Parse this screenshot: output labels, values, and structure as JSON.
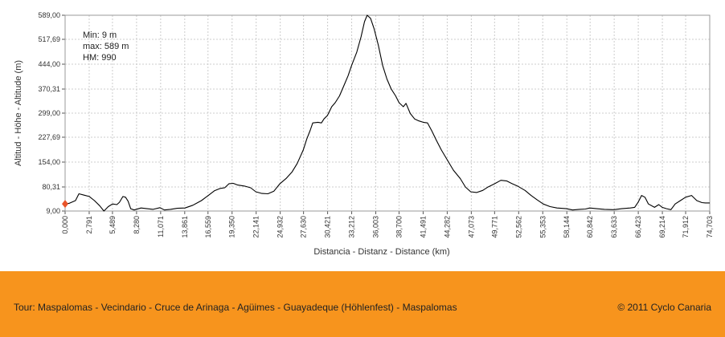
{
  "chart_data": {
    "type": "line",
    "title": "",
    "xlabel": "Distancia - Distanz - Distance (km)",
    "ylabel": "Altitud - Höhe - Altitude (m)",
    "xlim": [
      0,
      74.703
    ],
    "ylim": [
      9,
      589
    ],
    "x_ticks": [
      "0,000",
      "2,791",
      "5,489",
      "8,280",
      "11,071",
      "13,861",
      "16,559",
      "19,350",
      "22,141",
      "24,932",
      "27,630",
      "30,421",
      "33,212",
      "36,003",
      "38,700",
      "41,491",
      "44,282",
      "47,073",
      "49,771",
      "52,562",
      "55,353",
      "58,144",
      "60,842",
      "63,633",
      "66,423",
      "69,214",
      "71,912",
      "74,703"
    ],
    "y_ticks": [
      "9,00",
      "80,31",
      "154,00",
      "227,69",
      "299,00",
      "370,31",
      "444,00",
      "517,69",
      "589,00"
    ],
    "grid": true,
    "stats": {
      "min": "Min: 9 m",
      "max": "max: 589 m",
      "hm": "HM: 990"
    },
    "series": [
      {
        "values": [
          [
            0,
            30
          ],
          [
            0.5,
            32
          ],
          [
            1.2,
            40
          ],
          [
            1.6,
            60
          ],
          [
            2.2,
            56
          ],
          [
            2.8,
            52
          ],
          [
            3.4,
            40
          ],
          [
            4.0,
            25
          ],
          [
            4.5,
            9
          ],
          [
            5.0,
            22
          ],
          [
            5.5,
            30
          ],
          [
            6.0,
            28
          ],
          [
            6.3,
            35
          ],
          [
            6.7,
            52
          ],
          [
            7.0,
            50
          ],
          [
            7.3,
            38
          ],
          [
            7.6,
            16
          ],
          [
            8.0,
            12
          ],
          [
            8.8,
            18
          ],
          [
            9.5,
            16
          ],
          [
            10.2,
            14
          ],
          [
            11.0,
            19
          ],
          [
            11.5,
            12
          ],
          [
            12.2,
            14
          ],
          [
            13.0,
            17
          ],
          [
            13.9,
            18
          ],
          [
            14.8,
            26
          ],
          [
            15.8,
            40
          ],
          [
            16.6,
            55
          ],
          [
            17.3,
            69
          ],
          [
            18.0,
            76
          ],
          [
            18.5,
            78
          ],
          [
            19.0,
            90
          ],
          [
            19.5,
            91
          ],
          [
            20.0,
            86
          ],
          [
            20.8,
            83
          ],
          [
            21.5,
            78
          ],
          [
            22.1,
            66
          ],
          [
            22.8,
            61
          ],
          [
            23.5,
            60
          ],
          [
            24.2,
            68
          ],
          [
            24.9,
            90
          ],
          [
            25.6,
            105
          ],
          [
            26.3,
            125
          ],
          [
            26.9,
            150
          ],
          [
            27.6,
            190
          ],
          [
            28.0,
            222
          ],
          [
            28.4,
            248
          ],
          [
            28.7,
            270
          ],
          [
            29.3,
            272
          ],
          [
            29.7,
            270
          ],
          [
            30.0,
            282
          ],
          [
            30.4,
            292
          ],
          [
            30.9,
            318
          ],
          [
            31.3,
            330
          ],
          [
            31.8,
            350
          ],
          [
            32.3,
            380
          ],
          [
            32.8,
            410
          ],
          [
            33.2,
            440
          ],
          [
            33.8,
            480
          ],
          [
            34.3,
            525
          ],
          [
            34.7,
            570
          ],
          [
            35.0,
            589
          ],
          [
            35.4,
            580
          ],
          [
            35.8,
            550
          ],
          [
            36.3,
            500
          ],
          [
            36.8,
            440
          ],
          [
            37.3,
            400
          ],
          [
            37.8,
            370
          ],
          [
            38.3,
            350
          ],
          [
            38.7,
            330
          ],
          [
            39.2,
            318
          ],
          [
            39.5,
            328
          ],
          [
            40.0,
            298
          ],
          [
            40.5,
            282
          ],
          [
            41.0,
            276
          ],
          [
            41.5,
            272
          ],
          [
            42.0,
            270
          ],
          [
            42.5,
            246
          ],
          [
            43.0,
            220
          ],
          [
            43.6,
            190
          ],
          [
            44.3,
            160
          ],
          [
            45.0,
            130
          ],
          [
            45.8,
            105
          ],
          [
            46.4,
            80
          ],
          [
            47.0,
            66
          ],
          [
            47.7,
            64
          ],
          [
            48.4,
            70
          ],
          [
            49.0,
            80
          ],
          [
            49.8,
            90
          ],
          [
            50.5,
            100
          ],
          [
            51.2,
            98
          ],
          [
            51.8,
            90
          ],
          [
            52.5,
            82
          ],
          [
            53.3,
            70
          ],
          [
            54.0,
            55
          ],
          [
            54.7,
            42
          ],
          [
            55.4,
            30
          ],
          [
            56.2,
            22
          ],
          [
            57.0,
            18
          ],
          [
            58.1,
            16
          ],
          [
            58.8,
            12
          ],
          [
            59.6,
            14
          ],
          [
            60.3,
            15
          ],
          [
            60.8,
            18
          ],
          [
            61.6,
            16
          ],
          [
            62.5,
            14
          ],
          [
            63.6,
            13
          ],
          [
            64.5,
            16
          ],
          [
            65.5,
            18
          ],
          [
            66.0,
            20
          ],
          [
            66.4,
            35
          ],
          [
            66.8,
            55
          ],
          [
            67.2,
            50
          ],
          [
            67.6,
            30
          ],
          [
            68.3,
            20
          ],
          [
            68.8,
            28
          ],
          [
            69.2,
            20
          ],
          [
            69.7,
            16
          ],
          [
            70.2,
            13
          ],
          [
            70.7,
            30
          ],
          [
            71.3,
            40
          ],
          [
            71.9,
            50
          ],
          [
            72.6,
            55
          ],
          [
            73.2,
            40
          ],
          [
            73.8,
            34
          ],
          [
            74.2,
            33
          ],
          [
            74.703,
            33
          ]
        ]
      }
    ]
  },
  "footer": {
    "tour": "Tour: Maspalomas - Vecindario - Cruce de Arinaga - Agüimes - Guayadeque (Höhlenfest) - Maspalomas",
    "copyright": "© 2011 Cyclo Canaria"
  },
  "colors": {
    "line": "#000000",
    "grid": "#cccccc",
    "marker": "#e8542a",
    "footer": "#f7941d"
  }
}
